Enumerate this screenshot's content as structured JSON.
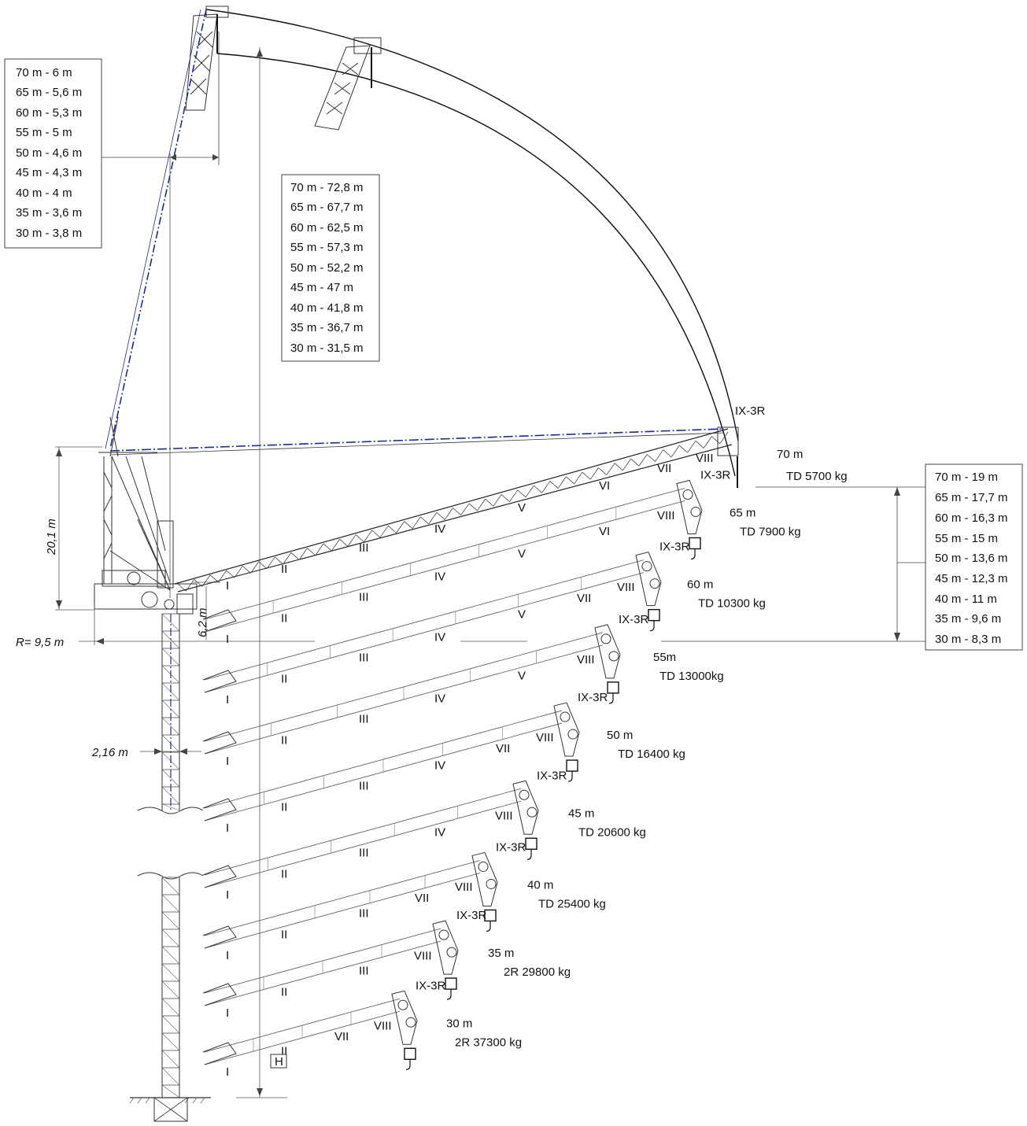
{
  "table_left": {
    "rows": [
      "70 m -    6 m",
      "65 m - 5,6 m",
      "60 m - 5,3 m",
      "55 m -    5 m",
      "50 m - 4,6 m",
      "45 m - 4,3 m",
      "40 m -    4 m",
      "35 m - 3,6 m",
      "30 m - 3,8 m"
    ]
  },
  "table_mid": {
    "rows": [
      "70 m - 72,8 m",
      "65 m - 67,7 m",
      "60 m - 62,5 m",
      "55 m - 57,3 m",
      "50 m - 52,2 m",
      "45 m -    47 m",
      "40 m - 41,8 m",
      "35 m - 36,7 m",
      "30 m - 31,5 m"
    ]
  },
  "table_right": {
    "rows": [
      "70 m -   19  m",
      "65 m - 17,7 m",
      "60 m - 16,3 m",
      "55 m -    15 m",
      "50 m - 13,6 m",
      "45 m - 12,3 m",
      "40 m -    11 m",
      "35 m -   9,6 m",
      "30 m -   8,3 m"
    ]
  },
  "dims": {
    "height_20": "20,1 m",
    "height_6": "6,2 m",
    "radius": "R= 9,5  m",
    "width_216": "2,16  m",
    "h_marker": "H"
  },
  "jib70": {
    "tip": "IX-3R",
    "length": "70 m",
    "load": "TD  5700 kg",
    "sections": [
      "I",
      "II",
      "III",
      "IV",
      "V",
      "VI",
      "VII",
      "VIII"
    ]
  },
  "configs": [
    {
      "length": "65 m",
      "load": "TD  7900 kg",
      "tip": "IX-3R",
      "sections": [
        "I",
        "II",
        "III",
        "IV",
        "V",
        "VI",
        "VIII"
      ]
    },
    {
      "length": "60 m",
      "load": "TD  10300 kg",
      "tip": "IX-3R",
      "sections": [
        "I",
        "II",
        "III",
        "IV",
        "V",
        "VII",
        "VIII"
      ]
    },
    {
      "length": "55m",
      "load": "TD  13000kg",
      "tip": "IX-3R",
      "sections": [
        "I",
        "II",
        "III",
        "IV",
        "V",
        "VIII"
      ]
    },
    {
      "length": "50 m",
      "load": "TD  16400 kg",
      "tip": "IX-3R",
      "sections": [
        "I",
        "II",
        "III",
        "IV",
        "VII",
        "VIII"
      ]
    },
    {
      "length": "45 m",
      "load": "TD  20600 kg",
      "tip": "IX-3R",
      "sections": [
        "I",
        "II",
        "III",
        "IV",
        "VIII"
      ]
    },
    {
      "length": "40 m",
      "load": "TD  25400 kg",
      "tip": "IX-3R",
      "sections": [
        "I",
        "II",
        "III",
        "VII",
        "VIII"
      ]
    },
    {
      "length": "35 m",
      "load": "2R  29800 kg",
      "tip": "IX-3R",
      "sections": [
        "I",
        "II",
        "III",
        "VIII"
      ]
    },
    {
      "length": "30 m",
      "load": "2R  37300 kg",
      "tip": "IX-3R",
      "sections": [
        "I",
        "II",
        "VII",
        "VIII"
      ]
    }
  ],
  "colors": {
    "line": "#222222",
    "accent": "#1a2e8a"
  }
}
